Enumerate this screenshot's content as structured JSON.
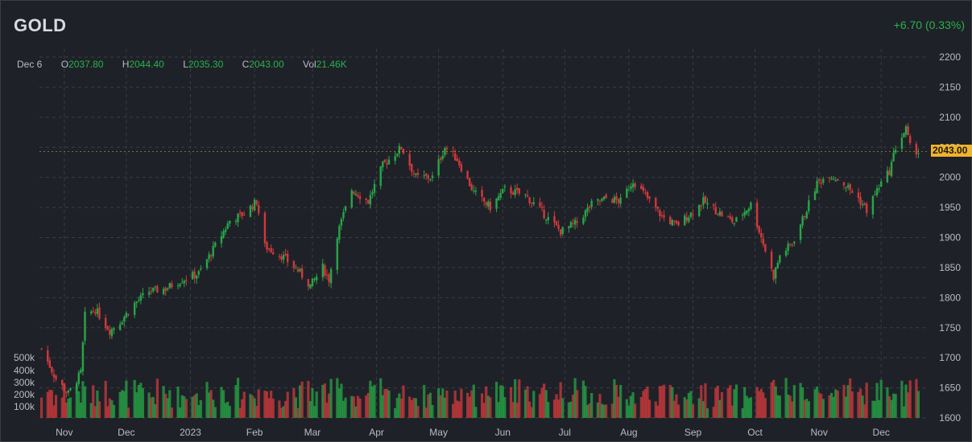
{
  "header": {
    "symbol": "GOLD",
    "change": "+6.70 (0.33%)"
  },
  "ohlc": {
    "date": "Dec 6",
    "open_label": "O",
    "open": "2037.80",
    "high_label": "H",
    "high": "2044.40",
    "low_label": "L",
    "low": "2035.30",
    "close_label": "C",
    "close": "2043.00",
    "vol_label": "Vol",
    "vol": "21.46K"
  },
  "last_price": "2043.00",
  "colors": {
    "up": "#26a646",
    "down": "#d0393c",
    "background": "#1f2128",
    "grid": "#3a3d46",
    "accent": "#f0b429"
  },
  "chart_data": {
    "type": "candlestick",
    "price_axis": {
      "ticks": [
        1600,
        1650,
        1700,
        1750,
        1800,
        1850,
        1900,
        1950,
        2000,
        2050,
        2100,
        2150,
        2200
      ],
      "range": [
        1600,
        2200
      ]
    },
    "volume_axis": {
      "ticks": [
        "100k",
        "200k",
        "300k",
        "400k",
        "500k"
      ],
      "values": [
        100000,
        200000,
        300000,
        400000,
        500000
      ]
    },
    "x_labels": [
      "Nov",
      "Dec",
      "2023",
      "Feb",
      "Mar",
      "Apr",
      "May",
      "Jun",
      "Jul",
      "Aug",
      "Sep",
      "Oct",
      "Nov",
      "Dec"
    ],
    "grid": true,
    "close_path": [
      [
        "2022-10-21",
        1715
      ],
      [
        "2022-10-28",
        1665
      ],
      [
        "2022-11-03",
        1640
      ],
      [
        "2022-11-09",
        1675
      ],
      [
        "2022-11-11",
        1770
      ],
      [
        "2022-11-16",
        1780
      ],
      [
        "2022-11-23",
        1745
      ],
      [
        "2022-11-28",
        1760
      ],
      [
        "2022-12-05",
        1790
      ],
      [
        "2022-12-12",
        1810
      ],
      [
        "2022-12-20",
        1815
      ],
      [
        "2022-12-28",
        1830
      ],
      [
        "2023-01-05",
        1840
      ],
      [
        "2023-01-12",
        1880
      ],
      [
        "2023-01-20",
        1928
      ],
      [
        "2023-01-27",
        1940
      ],
      [
        "2023-02-02",
        1960
      ],
      [
        "2023-02-06",
        1885
      ],
      [
        "2023-02-14",
        1870
      ],
      [
        "2023-02-22",
        1845
      ],
      [
        "2023-02-28",
        1820
      ],
      [
        "2023-03-06",
        1850
      ],
      [
        "2023-03-09",
        1830
      ],
      [
        "2023-03-13",
        1905
      ],
      [
        "2023-03-20",
        1980
      ],
      [
        "2023-03-28",
        1960
      ],
      [
        "2023-04-04",
        2020
      ],
      [
        "2023-04-13",
        2050
      ],
      [
        "2023-04-20",
        2000
      ],
      [
        "2023-04-28",
        2000
      ],
      [
        "2023-05-04",
        2050
      ],
      [
        "2023-05-10",
        2030
      ],
      [
        "2023-05-18",
        1975
      ],
      [
        "2023-05-26",
        1950
      ],
      [
        "2023-06-02",
        1980
      ],
      [
        "2023-06-12",
        1970
      ],
      [
        "2023-06-22",
        1935
      ],
      [
        "2023-06-29",
        1910
      ],
      [
        "2023-07-07",
        1925
      ],
      [
        "2023-07-14",
        1955
      ],
      [
        "2023-07-21",
        1965
      ],
      [
        "2023-07-28",
        1960
      ],
      [
        "2023-08-03",
        1995
      ],
      [
        "2023-08-10",
        1965
      ],
      [
        "2023-08-17",
        1935
      ],
      [
        "2023-08-24",
        1920
      ],
      [
        "2023-08-31",
        1940
      ],
      [
        "2023-09-06",
        1960
      ],
      [
        "2023-09-14",
        1940
      ],
      [
        "2023-09-21",
        1925
      ],
      [
        "2023-09-29",
        1955
      ],
      [
        "2023-10-05",
        1890
      ],
      [
        "2023-10-10",
        1835
      ],
      [
        "2023-10-13",
        1870
      ],
      [
        "2023-10-19",
        1890
      ],
      [
        "2023-10-24",
        1930
      ],
      [
        "2023-10-31",
        1990
      ],
      [
        "2023-11-06",
        2005
      ],
      [
        "2023-11-13",
        1990
      ],
      [
        "2023-11-20",
        1965
      ],
      [
        "2023-11-24",
        1945
      ],
      [
        "2023-11-30",
        1985
      ],
      [
        "2023-12-05",
        2010
      ],
      [
        "2023-12-08",
        2050
      ],
      [
        "2023-12-13",
        2080
      ],
      [
        "2023-12-15",
        2050
      ],
      [
        "2023-12-19",
        2043
      ]
    ]
  }
}
